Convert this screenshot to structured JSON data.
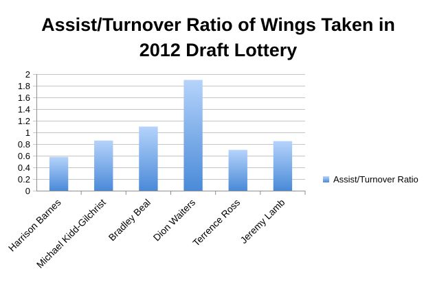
{
  "chart_data": {
    "type": "bar",
    "title_lines": [
      "Assist/Turnover Ratio of Wings Taken in",
      "2012 Draft Lottery"
    ],
    "xlabel": "",
    "ylabel": "",
    "categories": [
      "Harrison Barnes",
      "Michael Kidd-Gilchrist",
      "Bradley Beal",
      "Dion Waiters",
      "Terrence Ross",
      "Jeremy Lamb"
    ],
    "series": [
      {
        "name": "Assist/Turnover Ratio",
        "values": [
          0.58,
          0.86,
          1.1,
          1.9,
          0.7,
          0.85
        ]
      }
    ],
    "ylim": [
      0,
      2
    ],
    "yticks": [
      "0",
      "0.2",
      "0.4",
      "0.6",
      "0.8",
      "1",
      "1.2",
      "1.4",
      "1.6",
      "1.8",
      "2"
    ],
    "grid": true,
    "legend_position": "right",
    "colors": {
      "bar_top": "#b5d3fb",
      "bar_bottom": "#4a8ad8",
      "grid": "#c4c4c4",
      "axis": "#8e8e8e"
    }
  }
}
